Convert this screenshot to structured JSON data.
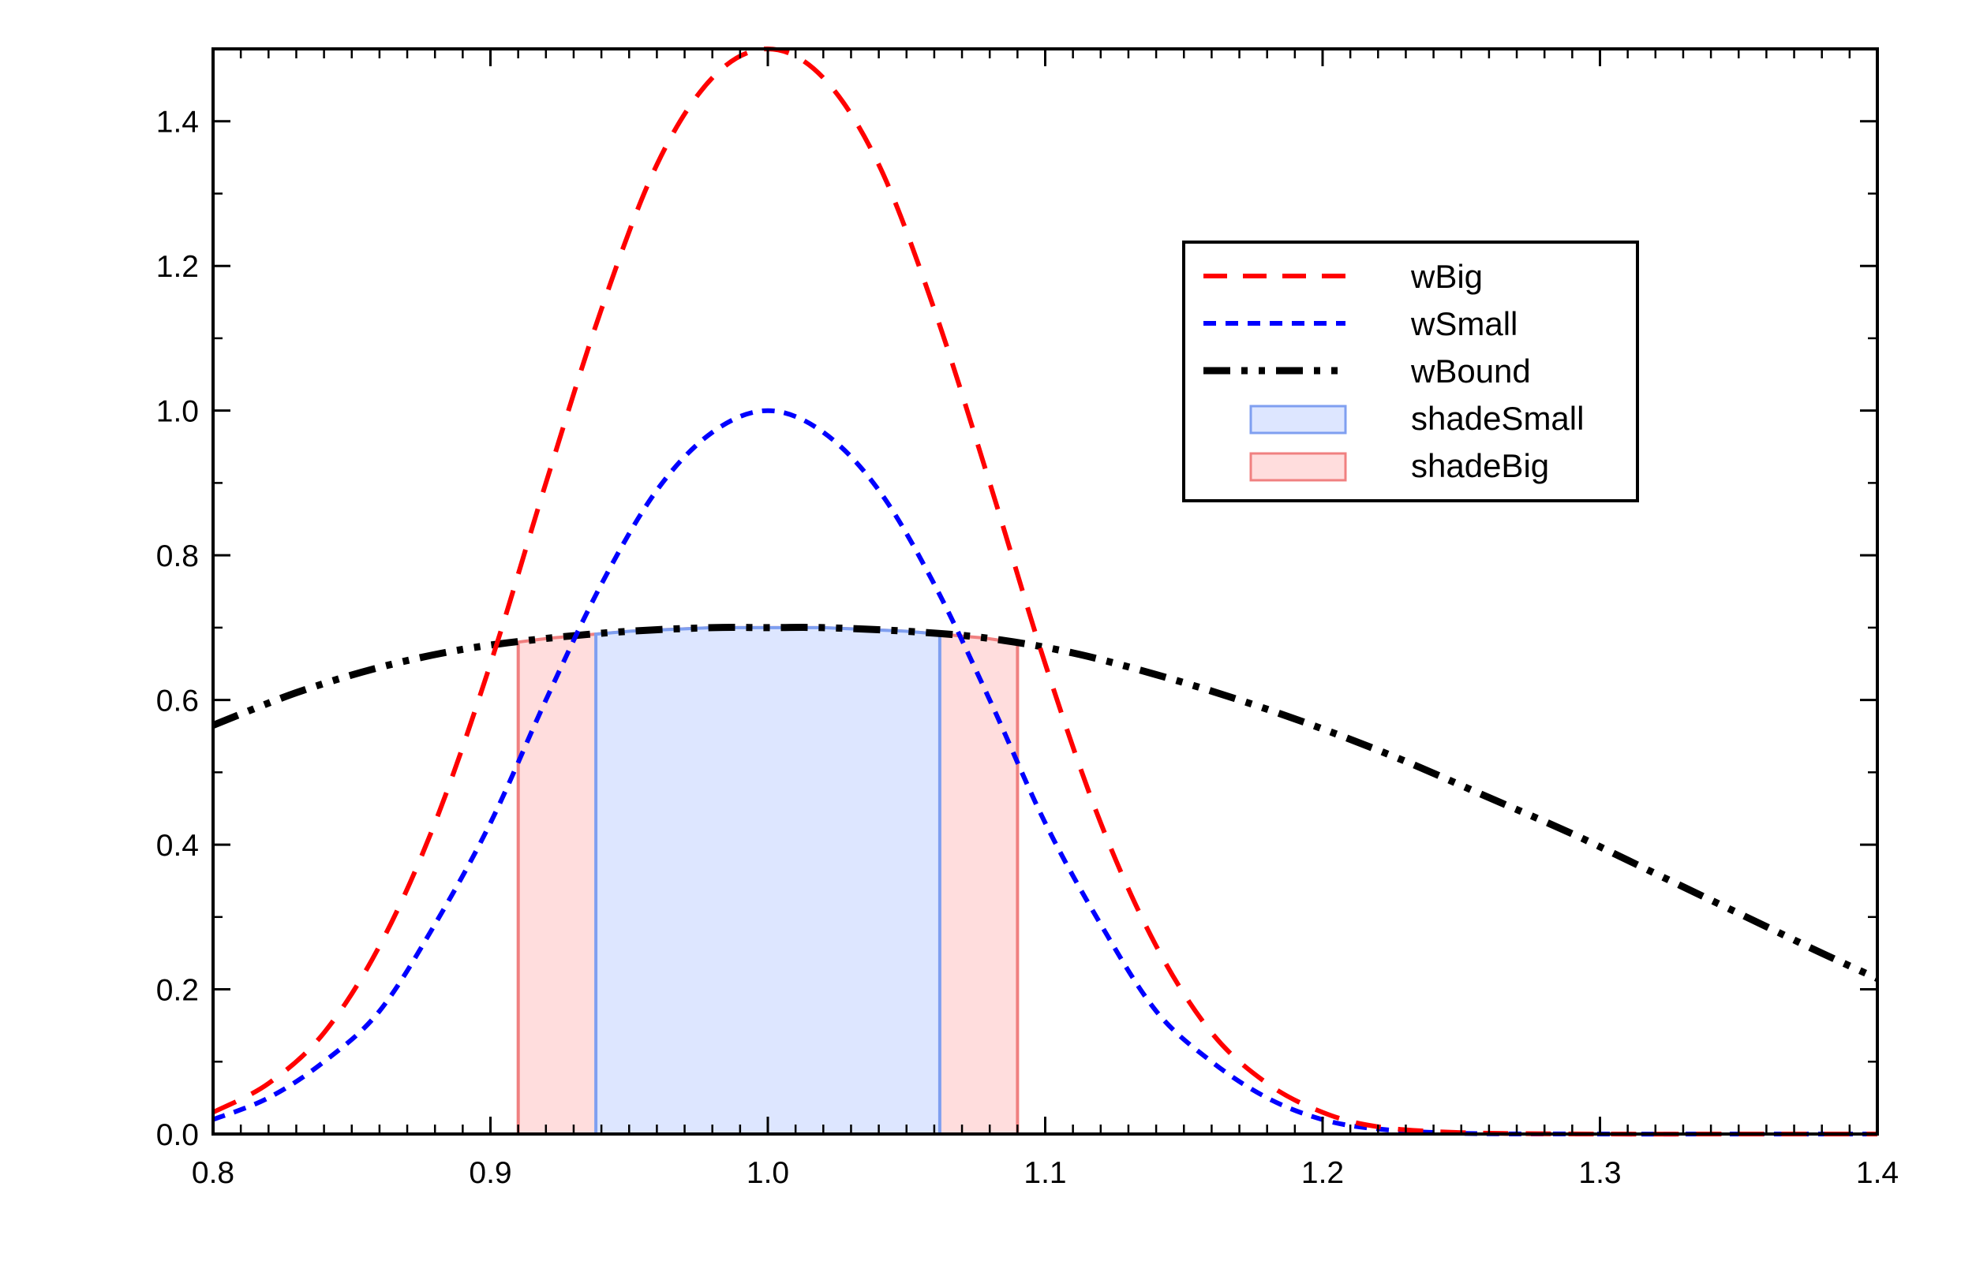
{
  "chart_data": {
    "type": "line",
    "title": "",
    "xlabel": "",
    "ylabel": "",
    "xlim": [
      0.8,
      1.4
    ],
    "ylim": [
      0.0,
      1.5
    ],
    "xticks": [
      "0.8",
      "0.9",
      "1.0",
      "1.1",
      "1.2",
      "1.3",
      "1.4"
    ],
    "yticks": [
      "0.0",
      "0.2",
      "0.4",
      "0.6",
      "0.8",
      "1.0",
      "1.2",
      "1.4"
    ],
    "grid": false,
    "legend_position": "top-right",
    "series": [
      {
        "name": "wBig",
        "style": "dashed",
        "color": "#ff0000",
        "x": [
          0.8,
          0.82,
          0.84,
          0.86,
          0.88,
          0.9,
          0.92,
          0.94,
          0.96,
          0.98,
          1.0,
          1.02,
          1.04,
          1.06,
          1.08,
          1.1,
          1.12,
          1.14,
          1.16,
          1.18,
          1.2,
          1.22,
          1.25,
          1.3,
          1.35,
          1.4
        ],
        "y": [
          0.03,
          0.07,
          0.14,
          0.26,
          0.43,
          0.65,
          0.9,
          1.14,
          1.34,
          1.46,
          1.5,
          1.46,
          1.34,
          1.14,
          0.9,
          0.65,
          0.43,
          0.26,
          0.14,
          0.07,
          0.03,
          0.01,
          0.002,
          0.0,
          0.0,
          0.0
        ]
      },
      {
        "name": "wSmall",
        "style": "dotted",
        "color": "#0000ff",
        "x": [
          0.8,
          0.82,
          0.84,
          0.86,
          0.88,
          0.9,
          0.92,
          0.94,
          0.96,
          0.98,
          1.0,
          1.02,
          1.04,
          1.06,
          1.08,
          1.1,
          1.12,
          1.14,
          1.16,
          1.18,
          1.2,
          1.22,
          1.25,
          1.3,
          1.35,
          1.4
        ],
        "y": [
          0.02,
          0.05,
          0.1,
          0.17,
          0.29,
          0.43,
          0.6,
          0.76,
          0.89,
          0.97,
          1.0,
          0.97,
          0.89,
          0.76,
          0.6,
          0.43,
          0.29,
          0.17,
          0.1,
          0.05,
          0.02,
          0.007,
          0.001,
          0.0,
          0.0,
          0.0
        ]
      },
      {
        "name": "wBound",
        "style": "dash-dot-dot",
        "color": "#000000",
        "x": [
          0.8,
          0.83,
          0.86,
          0.89,
          0.92,
          0.95,
          0.98,
          1.0,
          1.02,
          1.05,
          1.08,
          1.11,
          1.14,
          1.17,
          1.2,
          1.23,
          1.26,
          1.29,
          1.32,
          1.35,
          1.38,
          1.4
        ],
        "y": [
          0.565,
          0.61,
          0.645,
          0.67,
          0.685,
          0.695,
          0.7,
          0.7,
          0.7,
          0.695,
          0.685,
          0.665,
          0.635,
          0.6,
          0.56,
          0.515,
          0.465,
          0.415,
          0.36,
          0.305,
          0.25,
          0.215
        ]
      }
    ],
    "shaded_regions": [
      {
        "name": "shadeBig",
        "fill": "#ffdddd",
        "edge": "#f08080",
        "x_range": [
          0.91,
          1.09
        ],
        "follows": "wBound"
      },
      {
        "name": "shadeSmall",
        "fill": "#dde6ff",
        "edge": "#7f9ff0",
        "x_range": [
          0.938,
          1.062
        ],
        "follows": "wBound"
      }
    ],
    "legend": [
      "wBig",
      "wSmall",
      "wBound",
      "shadeSmall",
      "shadeBig"
    ]
  }
}
